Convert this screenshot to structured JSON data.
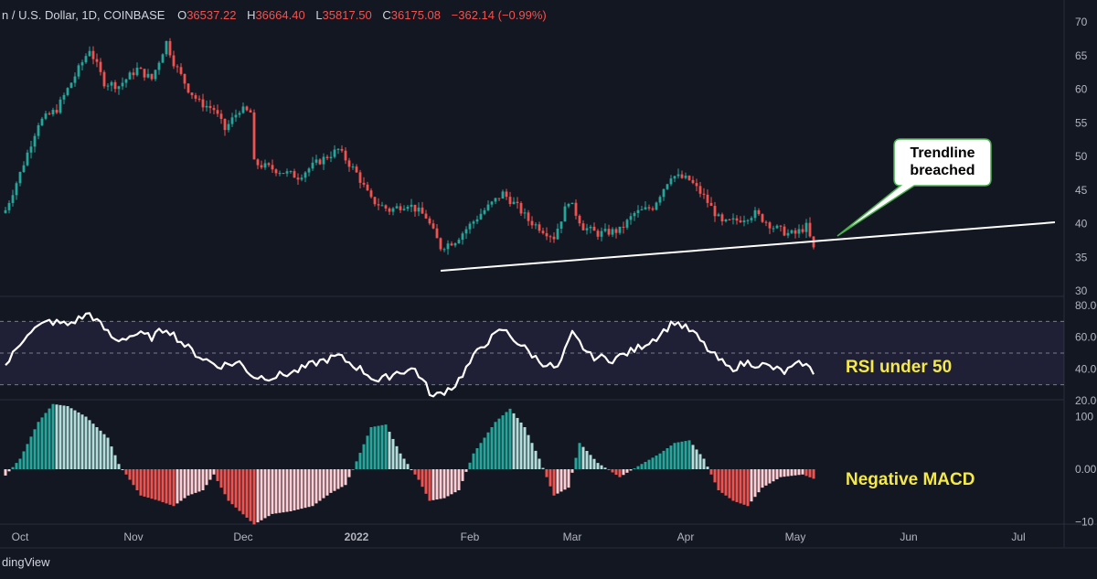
{
  "header": {
    "symbol": "n / U.S. Dollar, 1D, COINBASE",
    "open_label": "O",
    "open": "36537.22",
    "high_label": "H",
    "high": "36664.40",
    "low_label": "L",
    "low": "35817.50",
    "close_label": "C",
    "close": "36175.08",
    "change": "−362.14 (−0.99%)"
  },
  "footer": {
    "brand": "dingView"
  },
  "colors": {
    "background": "#131722",
    "up": "#26a69a",
    "down": "#ef5350",
    "rsi_band": "#7e57c2",
    "annotation": "#f5e94a",
    "axis_text": "#b2b5be",
    "header_red": "#ef5350"
  },
  "icons": {
    "brand": "tradingview-logo-icon"
  },
  "chart_data": [
    {
      "type": "candlestick",
      "title": "",
      "x_axis": [
        "Oct",
        "Nov",
        "Dec",
        "2022",
        "Feb",
        "Mar",
        "Apr",
        "May",
        "Jun",
        "Jul"
      ],
      "y_tick_labels": [
        "70",
        "65",
        "60",
        "55",
        "50",
        "45",
        "40",
        "35",
        "30"
      ],
      "ylim": [
        29500,
        70500
      ],
      "date_range": [
        "2021-09-27",
        "2022-05-06"
      ],
      "anchors": [
        [
          "2021-09-27",
          42000
        ],
        [
          "2021-10-01",
          47500
        ],
        [
          "2021-10-06",
          55000
        ],
        [
          "2021-10-11",
          57000
        ],
        [
          "2021-10-15",
          61000
        ],
        [
          "2021-10-20",
          66000
        ],
        [
          "2021-10-24",
          61000
        ],
        [
          "2021-10-28",
          60500
        ],
        [
          "2021-11-02",
          63000
        ],
        [
          "2021-11-06",
          61500
        ],
        [
          "2021-11-10",
          67000
        ],
        [
          "2021-11-12",
          64000
        ],
        [
          "2021-11-16",
          60000
        ],
        [
          "2021-11-19",
          58000
        ],
        [
          "2021-11-23",
          57000
        ],
        [
          "2021-11-26",
          54000
        ],
        [
          "2021-11-30",
          57000
        ],
        [
          "2021-12-03",
          56500
        ],
        [
          "2021-12-04",
          49000
        ],
        [
          "2021-12-10",
          48000
        ],
        [
          "2021-12-16",
          47000
        ],
        [
          "2021-12-21",
          49000
        ],
        [
          "2021-12-27",
          51000
        ],
        [
          "2022-01-01",
          47500
        ],
        [
          "2022-01-05",
          43500
        ],
        [
          "2022-01-10",
          42000
        ],
        [
          "2022-01-15",
          43000
        ],
        [
          "2022-01-20",
          41000
        ],
        [
          "2022-01-24",
          36500
        ],
        [
          "2022-01-28",
          37500
        ],
        [
          "2022-02-04",
          41500
        ],
        [
          "2022-02-10",
          44500
        ],
        [
          "2022-02-14",
          42500
        ],
        [
          "2022-02-17",
          40500
        ],
        [
          "2022-02-24",
          38000
        ],
        [
          "2022-02-28",
          43500
        ],
        [
          "2022-03-04",
          39500
        ],
        [
          "2022-03-08",
          38500
        ],
        [
          "2022-03-14",
          39000
        ],
        [
          "2022-03-18",
          41500
        ],
        [
          "2022-03-23",
          42500
        ],
        [
          "2022-03-28",
          47200
        ],
        [
          "2022-04-02",
          46500
        ],
        [
          "2022-04-06",
          44000
        ],
        [
          "2022-04-11",
          40000
        ],
        [
          "2022-04-15",
          40500
        ],
        [
          "2022-04-20",
          41500
        ],
        [
          "2022-04-25",
          39500
        ],
        [
          "2022-04-29",
          38500
        ],
        [
          "2022-05-01",
          38500
        ],
        [
          "2022-05-04",
          39600
        ],
        [
          "2022-05-06",
          36175
        ]
      ],
      "trendline": {
        "start": [
          "2022-01-24",
          33000
        ],
        "end": [
          "2022-07-11",
          40200
        ]
      }
    },
    {
      "type": "line",
      "title": "",
      "y_tick_labels": [
        "80.00",
        "60.00",
        "40.00",
        "20.00"
      ],
      "ylim": [
        18,
        82
      ],
      "reference_lines": [
        70,
        50,
        30
      ],
      "anchors": [
        [
          "2021-09-27",
          42
        ],
        [
          "2021-10-03",
          63
        ],
        [
          "2021-10-09",
          70
        ],
        [
          "2021-10-14",
          68
        ],
        [
          "2021-10-20",
          75
        ],
        [
          "2021-10-27",
          58
        ],
        [
          "2021-11-02",
          62
        ],
        [
          "2021-11-06",
          60
        ],
        [
          "2021-11-10",
          66
        ],
        [
          "2021-11-15",
          55
        ],
        [
          "2021-11-19",
          48
        ],
        [
          "2021-11-24",
          42
        ],
        [
          "2021-11-30",
          44
        ],
        [
          "2021-12-04",
          35
        ],
        [
          "2021-12-09",
          35
        ],
        [
          "2021-12-15",
          38
        ],
        [
          "2021-12-21",
          44
        ],
        [
          "2021-12-27",
          48
        ],
        [
          "2022-01-02",
          40
        ],
        [
          "2022-01-07",
          32
        ],
        [
          "2022-01-12",
          38
        ],
        [
          "2022-01-17",
          40
        ],
        [
          "2022-01-22",
          22
        ],
        [
          "2022-01-28",
          30
        ],
        [
          "2022-02-04",
          54
        ],
        [
          "2022-02-10",
          65
        ],
        [
          "2022-02-15",
          55
        ],
        [
          "2022-02-20",
          45
        ],
        [
          "2022-02-25",
          40
        ],
        [
          "2022-03-01",
          62
        ],
        [
          "2022-03-06",
          48
        ],
        [
          "2022-03-12",
          46
        ],
        [
          "2022-03-18",
          52
        ],
        [
          "2022-03-24",
          60
        ],
        [
          "2022-03-29",
          70
        ],
        [
          "2022-04-03",
          63
        ],
        [
          "2022-04-08",
          50
        ],
        [
          "2022-04-13",
          40
        ],
        [
          "2022-04-18",
          44
        ],
        [
          "2022-04-23",
          42
        ],
        [
          "2022-04-28",
          38
        ],
        [
          "2022-05-03",
          44
        ],
        [
          "2022-05-06",
          38
        ]
      ]
    },
    {
      "type": "histogram",
      "title": "",
      "y_tick_labels": [
        "100",
        "0.00",
        "−10"
      ],
      "ylim": [
        -1250,
        1450
      ],
      "anchors": [
        [
          "2021-09-27",
          -120
        ],
        [
          "2021-10-01",
          200
        ],
        [
          "2021-10-06",
          900
        ],
        [
          "2021-10-10",
          1240
        ],
        [
          "2021-10-14",
          1200
        ],
        [
          "2021-10-19",
          1000
        ],
        [
          "2021-10-25",
          600
        ],
        [
          "2021-10-28",
          100
        ],
        [
          "2021-11-03",
          -500
        ],
        [
          "2021-11-08",
          -600
        ],
        [
          "2021-11-12",
          -700
        ],
        [
          "2021-11-16",
          -500
        ],
        [
          "2021-11-20",
          -400
        ],
        [
          "2021-11-23",
          -100
        ],
        [
          "2021-11-27",
          -600
        ],
        [
          "2021-12-04",
          -1050
        ],
        [
          "2021-12-09",
          -850
        ],
        [
          "2021-12-14",
          -800
        ],
        [
          "2021-12-20",
          -700
        ],
        [
          "2021-12-25",
          -450
        ],
        [
          "2021-12-29",
          -300
        ],
        [
          "2022-01-01",
          150
        ],
        [
          "2022-01-05",
          800
        ],
        [
          "2022-01-09",
          850
        ],
        [
          "2022-01-13",
          300
        ],
        [
          "2022-01-18",
          -200
        ],
        [
          "2022-01-21",
          -600
        ],
        [
          "2022-01-25",
          -550
        ],
        [
          "2022-01-29",
          -400
        ],
        [
          "2022-02-02",
          300
        ],
        [
          "2022-02-08",
          900
        ],
        [
          "2022-02-12",
          1150
        ],
        [
          "2022-02-16",
          800
        ],
        [
          "2022-02-20",
          200
        ],
        [
          "2022-02-24",
          -500
        ],
        [
          "2022-02-28",
          -350
        ],
        [
          "2022-03-03",
          500
        ],
        [
          "2022-03-08",
          120
        ],
        [
          "2022-03-14",
          -150
        ],
        [
          "2022-03-20",
          100
        ],
        [
          "2022-03-25",
          300
        ],
        [
          "2022-03-29",
          500
        ],
        [
          "2022-04-02",
          550
        ],
        [
          "2022-04-06",
          200
        ],
        [
          "2022-04-10",
          -400
        ],
        [
          "2022-04-14",
          -600
        ],
        [
          "2022-04-18",
          -700
        ],
        [
          "2022-04-22",
          -350
        ],
        [
          "2022-04-27",
          -150
        ],
        [
          "2022-05-03",
          -100
        ],
        [
          "2022-05-06",
          -180
        ]
      ]
    }
  ],
  "annotations": {
    "callout_line1": "Trendline",
    "callout_line2": "breached",
    "rsi": "RSI under 50",
    "macd": "Negative MACD"
  }
}
